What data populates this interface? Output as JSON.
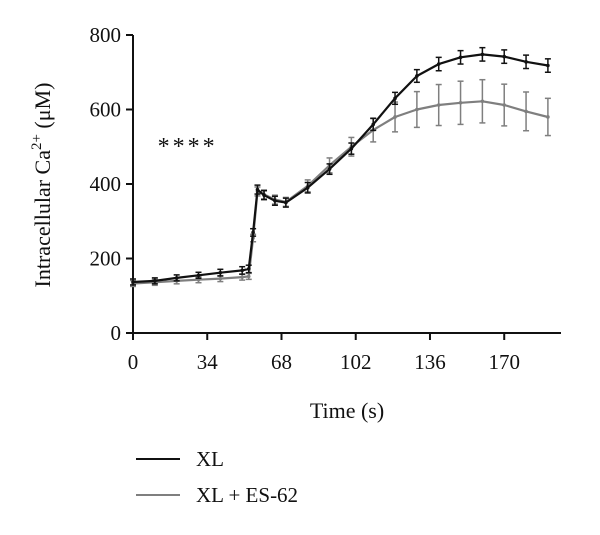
{
  "chart_data": {
    "type": "line",
    "title": "",
    "xlabel": "Time (s)",
    "ylabel_main": "Intracellular Ca",
    "ylabel_sup": "2+",
    "ylabel_unit": " (μM)",
    "xlim": [
      0,
      196
    ],
    "ylim": [
      0,
      800
    ],
    "xticks": [
      0,
      34,
      68,
      102,
      136,
      170
    ],
    "yticks": [
      0,
      200,
      400,
      600,
      800
    ],
    "grid": false,
    "legend_position": "bottom",
    "annotation": "****",
    "annotation_x": 25,
    "annotation_y": 480,
    "series": [
      {
        "name": "XL",
        "color": "#111111",
        "x": [
          0,
          10,
          20,
          30,
          40,
          50,
          53,
          55,
          57,
          60,
          65,
          70,
          80,
          90,
          100,
          110,
          120,
          130,
          140,
          150,
          160,
          170,
          180,
          190
        ],
        "y": [
          137,
          140,
          148,
          155,
          162,
          168,
          172,
          270,
          385,
          370,
          355,
          350,
          390,
          440,
          495,
          560,
          630,
          690,
          722,
          740,
          748,
          742,
          728,
          718
        ],
        "err": [
          8,
          8,
          8,
          8,
          9,
          10,
          10,
          10,
          12,
          12,
          12,
          12,
          14,
          14,
          15,
          16,
          16,
          17,
          18,
          18,
          18,
          18,
          18,
          18
        ]
      },
      {
        "name": "XL + ES-62",
        "color": "#7f7f7f",
        "x": [
          0,
          10,
          20,
          30,
          40,
          50,
          53,
          55,
          57,
          60,
          65,
          70,
          80,
          90,
          100,
          110,
          120,
          130,
          140,
          150,
          160,
          170,
          180,
          190
        ],
        "y": [
          133,
          136,
          140,
          143,
          146,
          150,
          152,
          255,
          380,
          372,
          358,
          352,
          395,
          450,
          500,
          545,
          580,
          600,
          612,
          618,
          622,
          612,
          595,
          580
        ],
        "err": [
          8,
          8,
          8,
          8,
          8,
          8,
          8,
          10,
          12,
          12,
          12,
          12,
          16,
          20,
          25,
          32,
          40,
          48,
          55,
          58,
          58,
          56,
          52,
          50
        ]
      }
    ]
  }
}
